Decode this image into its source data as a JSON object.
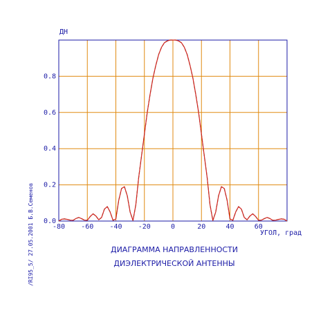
{
  "colors": {
    "axis": "#1a1aa6",
    "grid": "#e08a10",
    "curve_primary": "#d42020",
    "curve_secondary": "#2aa02a",
    "text": "#1a1aa6"
  },
  "side_note": "/RI95_5/   27.05.2001   Б.В.Семенов",
  "chart_data": {
    "type": "line",
    "title": "ДИАГРАММА НАПРАВЛЕННОСТИ",
    "subtitle": "ДИЭЛЕКТРИЧЕСКОЙ АНТЕННЫ",
    "xlabel": "УГОЛ, град",
    "ylabel": "ДН",
    "xlim": [
      -80,
      80
    ],
    "ylim": [
      0,
      1.0
    ],
    "x_ticks": [
      "-80",
      "-60",
      "-40",
      "-20",
      "0",
      "20",
      "40",
      "60"
    ],
    "y_ticks": [
      "0.0",
      "0.2",
      "0.4",
      "0.6",
      "0.8"
    ],
    "grid": true,
    "series": [
      {
        "color": "#d42020",
        "x": [
          -80,
          -78,
          -76,
          -74,
          -72,
          -70,
          -68,
          -66,
          -64,
          -62,
          -60,
          -58,
          -56,
          -54,
          -52,
          -50,
          -48,
          -46,
          -44,
          -42,
          -40,
          -38,
          -36,
          -34,
          -32,
          -30,
          -28,
          -26,
          -24,
          -22,
          -20,
          -18,
          -16,
          -14,
          -12,
          -10,
          -8,
          -6,
          -4,
          -2,
          0,
          2,
          4,
          6,
          8,
          10,
          12,
          14,
          16,
          18,
          20,
          22,
          24,
          26,
          28,
          30,
          32,
          34,
          36,
          38,
          40,
          42,
          44,
          46,
          48,
          50,
          52,
          54,
          56,
          58,
          60,
          62,
          64,
          66,
          68,
          70,
          72,
          74,
          76,
          78,
          80
        ],
        "y": [
          0.0,
          0.01,
          0.012,
          0.009,
          0.005,
          0.004,
          0.014,
          0.02,
          0.013,
          0.005,
          0.004,
          0.025,
          0.04,
          0.028,
          0.007,
          0.02,
          0.066,
          0.08,
          0.05,
          0.004,
          0.012,
          0.114,
          0.18,
          0.19,
          0.14,
          0.05,
          0.003,
          0.09,
          0.24,
          0.36,
          0.48,
          0.6,
          0.7,
          0.79,
          0.86,
          0.92,
          0.96,
          0.985,
          0.995,
          1.0,
          1.0,
          1.0,
          0.995,
          0.985,
          0.96,
          0.92,
          0.86,
          0.79,
          0.7,
          0.6,
          0.48,
          0.36,
          0.24,
          0.09,
          0.003,
          0.05,
          0.14,
          0.19,
          0.18,
          0.114,
          0.012,
          0.004,
          0.05,
          0.08,
          0.066,
          0.02,
          0.007,
          0.028,
          0.04,
          0.025,
          0.004,
          0.005,
          0.013,
          0.02,
          0.014,
          0.004,
          0.005,
          0.009,
          0.012,
          0.01,
          0.0
        ]
      },
      {
        "color": "#2aa02a",
        "x": [
          -80,
          -78,
          -76,
          -74,
          -72,
          -70,
          -68,
          -66,
          -64,
          -62,
          -60,
          -58,
          -56,
          -54,
          -52,
          -50,
          -48,
          -46,
          -44,
          -42,
          -40,
          -38,
          -36,
          -34,
          -32,
          -30,
          -28,
          -26,
          -24,
          -22,
          -20,
          -18,
          -16,
          -14,
          -12,
          -10,
          -8,
          -6,
          -4,
          -2,
          0,
          2,
          4,
          6,
          8,
          10,
          12,
          14,
          16,
          18,
          20,
          22,
          24,
          26,
          28,
          30,
          32,
          34,
          36,
          38,
          40,
          42,
          44,
          46,
          48,
          50,
          52,
          54,
          56,
          58,
          60,
          62,
          64,
          66,
          68,
          70,
          72,
          74,
          76,
          78,
          80
        ],
        "y": [
          0.0,
          0.01,
          0.012,
          0.009,
          0.005,
          0.004,
          0.014,
          0.02,
          0.013,
          0.005,
          0.004,
          0.025,
          0.04,
          0.028,
          0.007,
          0.02,
          0.066,
          0.08,
          0.05,
          0.004,
          0.012,
          0.114,
          0.18,
          0.19,
          0.14,
          0.05,
          0.003,
          0.09,
          0.24,
          0.36,
          0.48,
          0.6,
          0.7,
          0.79,
          0.86,
          0.92,
          0.96,
          0.985,
          0.995,
          1.0,
          1.0,
          1.0,
          0.995,
          0.985,
          0.96,
          0.92,
          0.86,
          0.79,
          0.7,
          0.6,
          0.48,
          0.36,
          0.24,
          0.09,
          0.003,
          0.05,
          0.14,
          0.19,
          0.18,
          0.114,
          0.012,
          0.004,
          0.05,
          0.08,
          0.066,
          0.02,
          0.007,
          0.028,
          0.04,
          0.025,
          0.004,
          0.005,
          0.013,
          0.02,
          0.014,
          0.004,
          0.005,
          0.009,
          0.012,
          0.01,
          0.0
        ]
      }
    ]
  }
}
